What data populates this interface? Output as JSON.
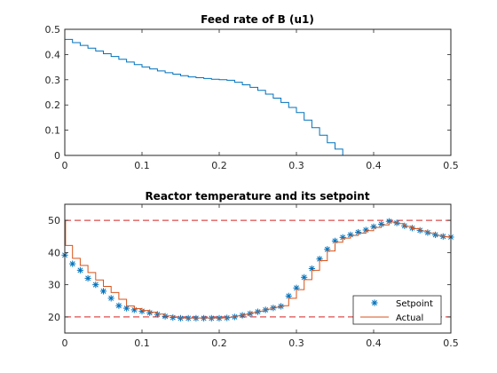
{
  "colors": {
    "series_blue": "#0072BD",
    "series_red": "#D95319",
    "limit_red": "#D62020",
    "axis": "#262626",
    "background": "#ffffff"
  },
  "chart_data": [
    {
      "type": "line",
      "style": "stairs",
      "title": "Feed rate of B (u1)",
      "xlabel": "",
      "ylabel": "",
      "xlim": [
        0,
        0.5
      ],
      "ylim": [
        0,
        0.5
      ],
      "xticks": [
        0,
        0.1,
        0.2,
        0.3,
        0.4,
        0.5
      ],
      "xtick_labels": [
        "0",
        "0.1",
        "0.2",
        "0.3",
        "0.4",
        "0.5"
      ],
      "yticks": [
        0,
        0.1,
        0.2,
        0.3,
        0.4,
        0.5
      ],
      "ytick_labels": [
        "0",
        "0.1",
        "0.2",
        "0.3",
        "0.4",
        "0.5"
      ],
      "grid": false,
      "series": [
        {
          "color": "#0072BD",
          "x": [
            0,
            0.01,
            0.02,
            0.03,
            0.04,
            0.05,
            0.06,
            0.07,
            0.08,
            0.09,
            0.1,
            0.11,
            0.12,
            0.13,
            0.14,
            0.15,
            0.16,
            0.17,
            0.18,
            0.19,
            0.2,
            0.21,
            0.22,
            0.23,
            0.24,
            0.25,
            0.26,
            0.27,
            0.28,
            0.29,
            0.3,
            0.31,
            0.32,
            0.33,
            0.34,
            0.35,
            0.36,
            0.37,
            0.38,
            0.39,
            0.4,
            0.41,
            0.42,
            0.43,
            0.44,
            0.45,
            0.46,
            0.47,
            0.48,
            0.49,
            0.5
          ],
          "values": [
            0.46,
            0.447,
            0.436,
            0.425,
            0.414,
            0.403,
            0.392,
            0.381,
            0.37,
            0.36,
            0.351,
            0.343,
            0.335,
            0.328,
            0.322,
            0.316,
            0.311,
            0.308,
            0.305,
            0.302,
            0.3,
            0.298,
            0.29,
            0.28,
            0.27,
            0.258,
            0.243,
            0.227,
            0.21,
            0.19,
            0.17,
            0.14,
            0.11,
            0.08,
            0.05,
            0.025,
            0,
            0,
            0,
            0,
            0,
            0,
            0,
            0,
            0,
            0,
            0,
            0,
            0,
            0,
            0
          ]
        }
      ]
    },
    {
      "type": "line",
      "title": "Reactor temperature and its setpoint",
      "xlabel": "",
      "ylabel": "",
      "xlim": [
        0,
        0.5
      ],
      "ylim": [
        15,
        55
      ],
      "xticks": [
        0,
        0.1,
        0.2,
        0.3,
        0.4,
        0.5
      ],
      "xtick_labels": [
        "0",
        "0.1",
        "0.2",
        "0.3",
        "0.4",
        "0.5"
      ],
      "yticks": [
        20,
        30,
        40,
        50
      ],
      "ytick_labels": [
        "20",
        "30",
        "40",
        "50"
      ],
      "grid": false,
      "legend": {
        "position": "bottom-right",
        "entries": [
          "Setpoint",
          "Actual"
        ]
      },
      "limits": [
        50,
        20
      ],
      "series": [
        {
          "name": "Setpoint",
          "marker": "asterisk",
          "color": "#0072BD",
          "x": [
            0,
            0.01,
            0.02,
            0.03,
            0.04,
            0.05,
            0.06,
            0.07,
            0.08,
            0.09,
            0.1,
            0.11,
            0.12,
            0.13,
            0.14,
            0.15,
            0.16,
            0.17,
            0.18,
            0.19,
            0.2,
            0.21,
            0.22,
            0.23,
            0.24,
            0.25,
            0.26,
            0.27,
            0.28,
            0.29,
            0.3,
            0.31,
            0.32,
            0.33,
            0.34,
            0.35,
            0.36,
            0.37,
            0.38,
            0.39,
            0.4,
            0.41,
            0.42,
            0.43,
            0.44,
            0.45,
            0.46,
            0.47,
            0.48,
            0.49,
            0.5
          ],
          "values": [
            39.2,
            36.5,
            34.5,
            32.0,
            30.0,
            28.0,
            25.8,
            23.5,
            22.7,
            22.2,
            21.8,
            21.3,
            20.8,
            20.2,
            19.8,
            19.6,
            19.6,
            19.6,
            19.6,
            19.6,
            19.6,
            19.7,
            20.0,
            20.5,
            21.0,
            21.6,
            22.2,
            22.8,
            23.3,
            26.5,
            29.0,
            32.3,
            35.0,
            38.0,
            41.0,
            43.6,
            44.7,
            45.5,
            46.3,
            47.0,
            48.0,
            48.8,
            49.7,
            49.2,
            48.3,
            47.6,
            46.9,
            46.2,
            45.5,
            45.0,
            44.8
          ]
        },
        {
          "name": "Actual",
          "color": "#D95319",
          "style": "stairs",
          "x": [
            0,
            0.001,
            0.01,
            0.02,
            0.03,
            0.04,
            0.05,
            0.06,
            0.07,
            0.08,
            0.09,
            0.1,
            0.11,
            0.12,
            0.13,
            0.14,
            0.15,
            0.16,
            0.17,
            0.18,
            0.19,
            0.2,
            0.21,
            0.22,
            0.23,
            0.24,
            0.25,
            0.26,
            0.27,
            0.28,
            0.29,
            0.3,
            0.31,
            0.32,
            0.33,
            0.34,
            0.35,
            0.36,
            0.37,
            0.38,
            0.39,
            0.4,
            0.41,
            0.42,
            0.43,
            0.44,
            0.45,
            0.46,
            0.47,
            0.48,
            0.49,
            0.5
          ],
          "values": [
            50,
            42.2,
            38.2,
            36.0,
            33.8,
            31.5,
            29.5,
            27.6,
            25.5,
            23.4,
            22.6,
            22.0,
            21.5,
            20.9,
            20.3,
            19.9,
            19.7,
            19.7,
            19.7,
            19.7,
            19.7,
            19.7,
            19.9,
            20.3,
            20.8,
            21.3,
            21.8,
            22.4,
            23.0,
            23.5,
            25.8,
            28.5,
            31.6,
            34.5,
            37.5,
            40.5,
            43.2,
            44.5,
            45.3,
            46.0,
            46.8,
            47.8,
            48.6,
            49.5,
            49.0,
            48.1,
            47.4,
            46.7,
            46.0,
            45.3,
            44.9,
            44.8
          ]
        }
      ]
    }
  ]
}
